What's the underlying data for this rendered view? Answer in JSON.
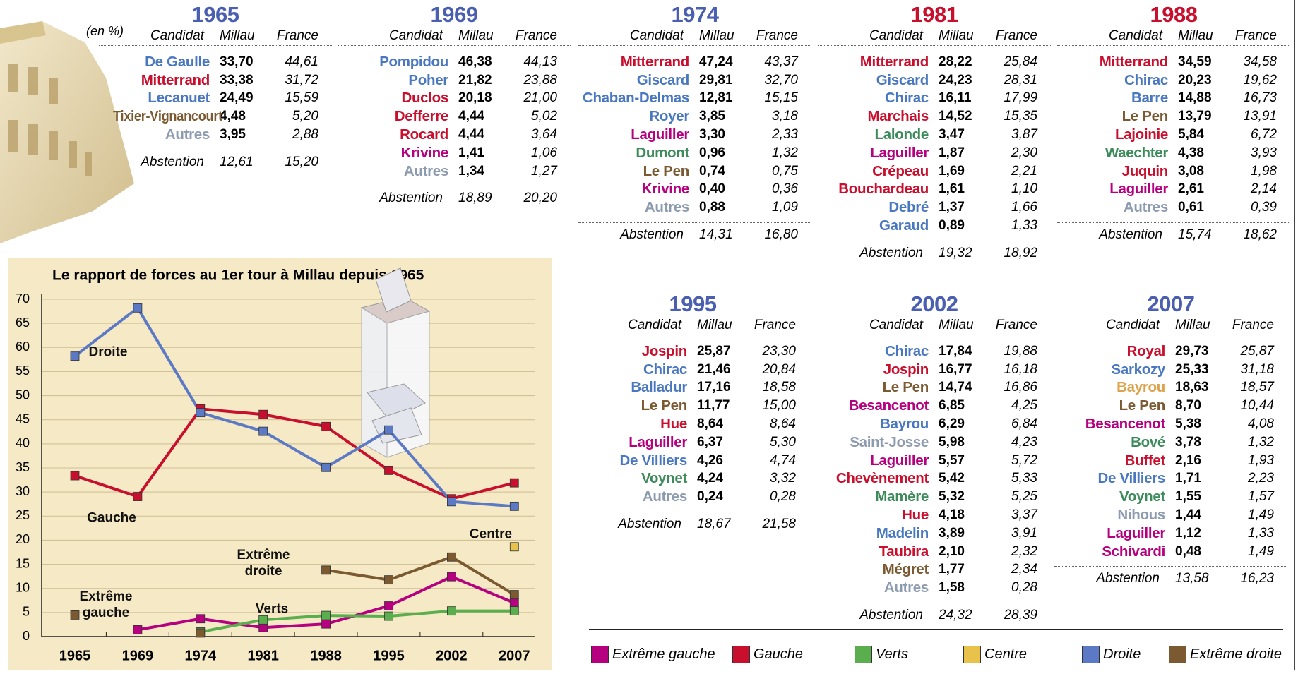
{
  "tables": [
    {
      "year": "1965",
      "unit": "(en %)",
      "headers": [
        "Candidat",
        "Millau",
        "France"
      ],
      "rows": [
        [
          "De Gaulle",
          "33,70",
          "44,61"
        ],
        [
          "Mitterrand",
          "33,38",
          "31,72"
        ],
        [
          "Lecanuet",
          "24,49",
          "15,59"
        ],
        [
          "Tixier-Vignancourt",
          "4,48",
          "5,20"
        ],
        [
          "Autres",
          "3,95",
          "2,88"
        ]
      ],
      "row_colors": [
        "#4a78c0",
        "#c8102e",
        "#4a78c0",
        "#7b5a32",
        "#8d9bb0"
      ],
      "abstention": [
        "Abstention",
        "12,61",
        "15,20"
      ]
    },
    {
      "year": "1969",
      "headers": [
        "Candidat",
        "Millau",
        "France"
      ],
      "rows": [
        [
          "Pompidou",
          "46,38",
          "44,13"
        ],
        [
          "Poher",
          "21,82",
          "23,88"
        ],
        [
          "Duclos",
          "20,18",
          "21,00"
        ],
        [
          "Defferre",
          "4,44",
          "5,02"
        ],
        [
          "Rocard",
          "4,44",
          "3,64"
        ],
        [
          "Krivine",
          "1,41",
          "1,06"
        ],
        [
          "Autres",
          "1,34",
          "1,27"
        ]
      ],
      "row_colors": [
        "#4a78c0",
        "#4a78c0",
        "#c8102e",
        "#c8102e",
        "#c8102e",
        "#b5007f",
        "#8d9bb0"
      ],
      "abstention": [
        "Abstention",
        "18,89",
        "20,20"
      ]
    },
    {
      "year": "1974",
      "headers": [
        "Candidat",
        "Millau",
        "France"
      ],
      "rows": [
        [
          "Mitterrand",
          "47,24",
          "43,37"
        ],
        [
          "Giscard",
          "29,81",
          "32,70"
        ],
        [
          "Chaban-Delmas",
          "12,81",
          "15,15"
        ],
        [
          "Royer",
          "3,85",
          "3,18"
        ],
        [
          "Laguiller",
          "3,30",
          "2,33"
        ],
        [
          "Dumont",
          "0,96",
          "1,32"
        ],
        [
          "Le Pen",
          "0,74",
          "0,75"
        ],
        [
          "Krivine",
          "0,40",
          "0,36"
        ],
        [
          "Autres",
          "0,88",
          "1,09"
        ]
      ],
      "row_colors": [
        "#c8102e",
        "#4a78c0",
        "#4a78c0",
        "#4a78c0",
        "#b5007f",
        "#3d8a5a",
        "#7b5a32",
        "#b5007f",
        "#8d9bb0"
      ],
      "abstention": [
        "Abstention",
        "14,31",
        "16,80"
      ]
    },
    {
      "year": "1981",
      "headers": [
        "Candidat",
        "Millau",
        "France"
      ],
      "rows": [
        [
          "Mitterrand",
          "28,22",
          "25,84"
        ],
        [
          "Giscard",
          "24,23",
          "28,31"
        ],
        [
          "Chirac",
          "16,11",
          "17,99"
        ],
        [
          "Marchais",
          "14,52",
          "15,35"
        ],
        [
          "Lalonde",
          "3,47",
          "3,87"
        ],
        [
          "Laguiller",
          "1,87",
          "2,30"
        ],
        [
          "Crépeau",
          "1,69",
          "2,21"
        ],
        [
          "Bouchardeau",
          "1,61",
          "1,10"
        ],
        [
          "Debré",
          "1,37",
          "1,66"
        ],
        [
          "Garaud",
          "0,89",
          "1,33"
        ]
      ],
      "row_colors": [
        "#c8102e",
        "#4a78c0",
        "#4a78c0",
        "#c8102e",
        "#3d8a5a",
        "#b5007f",
        "#c8102e",
        "#c8102e",
        "#4a78c0",
        "#4a78c0"
      ],
      "abstention": [
        "Abstention",
        "19,32",
        "18,92"
      ]
    },
    {
      "year": "1988",
      "headers": [
        "Candidat",
        "Millau",
        "France"
      ],
      "rows": [
        [
          "Mitterrand",
          "34,59",
          "34,58"
        ],
        [
          "Chirac",
          "20,23",
          "19,62"
        ],
        [
          "Barre",
          "14,88",
          "16,73"
        ],
        [
          "Le Pen",
          "13,79",
          "13,91"
        ],
        [
          "Lajoinie",
          "5,84",
          "6,72"
        ],
        [
          "Waechter",
          "4,38",
          "3,93"
        ],
        [
          "Juquin",
          "3,08",
          "1,98"
        ],
        [
          "Laguiller",
          "2,61",
          "2,14"
        ],
        [
          "Autres",
          "0,61",
          "0,39"
        ]
      ],
      "row_colors": [
        "#c8102e",
        "#4a78c0",
        "#4a78c0",
        "#7b5a32",
        "#c8102e",
        "#3d8a5a",
        "#c8102e",
        "#b5007f",
        "#8d9bb0"
      ],
      "abstention": [
        "Abstention",
        "15,74",
        "18,62"
      ]
    },
    {
      "year": "1995",
      "headers": [
        "Candidat",
        "Millau",
        "France"
      ],
      "rows": [
        [
          "Jospin",
          "25,87",
          "23,30"
        ],
        [
          "Chirac",
          "21,46",
          "20,84"
        ],
        [
          "Balladur",
          "17,16",
          "18,58"
        ],
        [
          "Le Pen",
          "11,77",
          "15,00"
        ],
        [
          "Hue",
          "8,64",
          "8,64"
        ],
        [
          "Laguiller",
          "6,37",
          "5,30"
        ],
        [
          "De Villiers",
          "4,26",
          "4,74"
        ],
        [
          "Voynet",
          "4,24",
          "3,32"
        ],
        [
          "Autres",
          "0,24",
          "0,28"
        ]
      ],
      "row_colors": [
        "#c8102e",
        "#4a78c0",
        "#4a78c0",
        "#7b5a32",
        "#c8102e",
        "#b5007f",
        "#4a78c0",
        "#3d8a5a",
        "#8d9bb0"
      ],
      "abstention": [
        "Abstention",
        "18,67",
        "21,58"
      ]
    },
    {
      "year": "2002",
      "headers": [
        "Candidat",
        "Millau",
        "France"
      ],
      "rows": [
        [
          "Chirac",
          "17,84",
          "19,88"
        ],
        [
          "Jospin",
          "16,77",
          "16,18"
        ],
        [
          "Le Pen",
          "14,74",
          "16,86"
        ],
        [
          "Besancenot",
          "6,85",
          "4,25"
        ],
        [
          "Bayrou",
          "6,29",
          "6,84"
        ],
        [
          "Saint-Josse",
          "5,98",
          "4,23"
        ],
        [
          "Laguiller",
          "5,57",
          "5,72"
        ],
        [
          "Chevènement",
          "5,42",
          "5,33"
        ],
        [
          "Mamère",
          "5,32",
          "5,25"
        ],
        [
          "Hue",
          "4,18",
          "3,37"
        ],
        [
          "Madelin",
          "3,89",
          "3,91"
        ],
        [
          "Taubira",
          "2,10",
          "2,32"
        ],
        [
          "Mégret",
          "1,77",
          "2,34"
        ],
        [
          "Autres",
          "1,58",
          "0,28"
        ]
      ],
      "row_colors": [
        "#4a78c0",
        "#c8102e",
        "#7b5a32",
        "#b5007f",
        "#4a78c0",
        "#8d9bb0",
        "#b5007f",
        "#c8102e",
        "#3d8a5a",
        "#c8102e",
        "#4a78c0",
        "#c8102e",
        "#7b5a32",
        "#8d9bb0"
      ],
      "abstention": [
        "Abstention",
        "24,32",
        "28,39"
      ]
    },
    {
      "year": "2007",
      "headers": [
        "Candidat",
        "Millau",
        "France"
      ],
      "rows": [
        [
          "Royal",
          "29,73",
          "25,87"
        ],
        [
          "Sarkozy",
          "25,33",
          "31,18"
        ],
        [
          "Bayrou",
          "18,63",
          "18,57"
        ],
        [
          "Le Pen",
          "8,70",
          "10,44"
        ],
        [
          "Besancenot",
          "5,38",
          "4,08"
        ],
        [
          "Bové",
          "3,78",
          "1,32"
        ],
        [
          "Buffet",
          "2,16",
          "1,93"
        ],
        [
          "De Villiers",
          "1,71",
          "2,23"
        ],
        [
          "Voynet",
          "1,55",
          "1,57"
        ],
        [
          "Nihous",
          "1,44",
          "1,49"
        ],
        [
          "Laguiller",
          "1,12",
          "1,33"
        ],
        [
          "Schivardi",
          "0,48",
          "1,49"
        ]
      ],
      "row_colors": [
        "#c8102e",
        "#4a78c0",
        "#dda24a",
        "#7b5a32",
        "#b5007f",
        "#3d8a5a",
        "#c8102e",
        "#4a78c0",
        "#3d8a5a",
        "#8d9bb0",
        "#b5007f",
        "#b5007f"
      ],
      "abstention": [
        "Abstention",
        "13,58",
        "16,23"
      ]
    }
  ],
  "chart_data": {
    "type": "line",
    "title": "Le rapport de forces au 1er tour à Millau depuis 1965",
    "categories": [
      "1965",
      "1969",
      "1974",
      "1981",
      "1988",
      "1995",
      "2002",
      "2007"
    ],
    "series": [
      {
        "name": "Extrême gauche",
        "color": "#b5007f",
        "values": [
          null,
          1.41,
          3.7,
          1.87,
          2.61,
          6.37,
          12.42,
          6.98
        ]
      },
      {
        "name": "Gauche",
        "color": "#c8102e",
        "values": [
          33.38,
          29.06,
          47.24,
          46.1,
          43.6,
          34.5,
          28.6,
          31.9
        ]
      },
      {
        "name": "Verts",
        "color": "#5aae4e",
        "values": [
          null,
          null,
          0.96,
          3.47,
          4.38,
          4.24,
          5.32,
          5.33
        ]
      },
      {
        "name": "Centre",
        "color": "#e8c24a",
        "values": [
          null,
          null,
          null,
          null,
          null,
          null,
          null,
          18.63
        ]
      },
      {
        "name": "Droite",
        "color": "#5b79c4",
        "values": [
          58.19,
          68.2,
          46.47,
          42.6,
          35.11,
          42.88,
          28,
          27.04
        ]
      },
      {
        "name": "Extrême droite",
        "color": "#7b5a32",
        "values": [
          4.48,
          null,
          0.74,
          null,
          13.79,
          11.77,
          16.51,
          8.7
        ]
      }
    ],
    "ylim": [
      0,
      70
    ],
    "yticks": [
      0,
      5,
      10,
      15,
      20,
      25,
      30,
      35,
      40,
      45,
      50,
      55,
      60,
      65,
      70
    ],
    "grid": true
  }
}
